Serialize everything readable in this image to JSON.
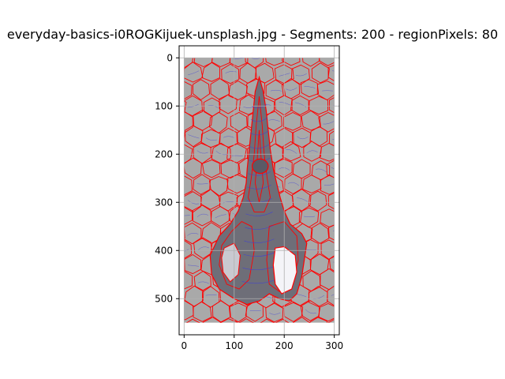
{
  "chart_data": {
    "type": "image",
    "title": "everyday-basics-i0ROGKijuek-unsplash.jpg - Segments: 200 - regionPixels: 80",
    "xlabel": "",
    "ylabel": "",
    "xlim": [
      -10,
      310
    ],
    "ylim": [
      575,
      -25
    ],
    "x_ticks": [
      0,
      100,
      200,
      300
    ],
    "y_ticks": [
      0,
      100,
      200,
      300,
      400,
      500
    ],
    "grid": true,
    "image_extent": {
      "x": [
        0,
        300
      ],
      "y": [
        0,
        550
      ]
    },
    "colors": {
      "background": "#a9a9a9",
      "object": "#6e6e78",
      "highlight": "#f4f4f8",
      "segment_boundary": "#ff0000",
      "contour": "#3c3cdc",
      "grid": "#b0b0b0"
    }
  }
}
